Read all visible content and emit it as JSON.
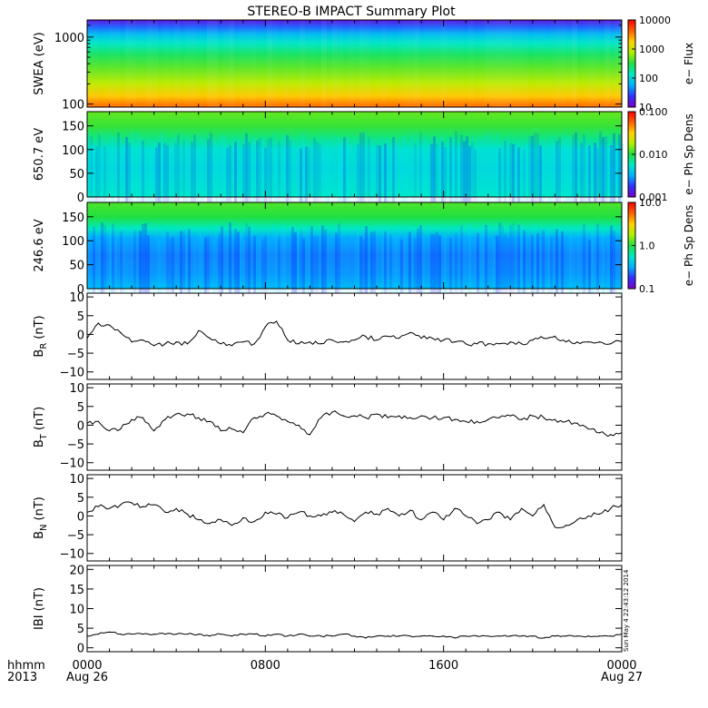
{
  "title": "STEREO-B IMPACT Summary Plot",
  "timestamp_note": "Sun May  4 22:43:12 2014",
  "colors": {
    "frame": "#000000",
    "line": "#000000",
    "background": "#ffffff"
  },
  "spectral_colormap": [
    "#7a00c8",
    "#3030ff",
    "#00b0ff",
    "#00e8c8",
    "#20e040",
    "#b0f000",
    "#ffd000",
    "#ff6000",
    "#ff0000"
  ],
  "chart_data": [
    {
      "type": "heatmap",
      "panel": "swea",
      "ylabel": "SWEA (eV)",
      "yscale": "log",
      "ylim": [
        90,
        1800
      ],
      "yticks": [
        {
          "value": 100,
          "label": "100"
        },
        {
          "value": 1000,
          "label": "1000"
        }
      ],
      "colorbar": {
        "label": "e− Flux",
        "scale": "log",
        "range": [
          10,
          10000
        ],
        "ticks": [
          "10",
          "100",
          "1000",
          "10000"
        ]
      },
      "energy_profile": [
        {
          "energy": 1800,
          "level": 0.05
        },
        {
          "energy": 1400,
          "level": 0.18
        },
        {
          "energy": 1100,
          "level": 0.28
        },
        {
          "energy": 800,
          "level": 0.38
        },
        {
          "energy": 550,
          "level": 0.47
        },
        {
          "energy": 350,
          "level": 0.55
        },
        {
          "energy": 200,
          "level": 0.65
        },
        {
          "energy": 130,
          "level": 0.76
        },
        {
          "energy": 100,
          "level": 0.84
        },
        {
          "energy": 90,
          "level": 0.86
        }
      ]
    },
    {
      "type": "heatmap",
      "panel": "pad650",
      "ylabel": "650.7 eV",
      "ylim": [
        0,
        180
      ],
      "yticks": [
        {
          "value": 0,
          "label": "0"
        },
        {
          "value": 50,
          "label": "50"
        },
        {
          "value": 100,
          "label": "100"
        },
        {
          "value": 150,
          "label": "150"
        }
      ],
      "colorbar": {
        "label": "e− Ph Sp Dens",
        "scale": "log",
        "range": [
          0.001,
          0.1
        ],
        "ticks": [
          "0.001",
          "0.010",
          "0.100"
        ]
      },
      "pitch_profile": [
        {
          "angle": 0,
          "level": 0.38
        },
        {
          "angle": 20,
          "level": 0.36
        },
        {
          "angle": 60,
          "level": 0.34
        },
        {
          "angle": 100,
          "level": 0.36
        },
        {
          "angle": 125,
          "level": 0.44
        },
        {
          "angle": 150,
          "level": 0.52
        },
        {
          "angle": 180,
          "level": 0.56
        }
      ]
    },
    {
      "type": "heatmap",
      "panel": "pad246",
      "ylabel": "246.6 eV",
      "ylim": [
        0,
        180
      ],
      "yticks": [
        {
          "value": 0,
          "label": "0"
        },
        {
          "value": 50,
          "label": "50"
        },
        {
          "value": 100,
          "label": "100"
        },
        {
          "value": 150,
          "label": "150"
        }
      ],
      "colorbar": {
        "label": "e− Ph Sp Dens",
        "scale": "log",
        "range": [
          0.1,
          10
        ],
        "ticks": [
          "0.1",
          "1.0",
          "10.0"
        ]
      },
      "pitch_profile": [
        {
          "angle": 0,
          "level": 0.27
        },
        {
          "angle": 30,
          "level": 0.22
        },
        {
          "angle": 70,
          "level": 0.2
        },
        {
          "angle": 105,
          "level": 0.24
        },
        {
          "angle": 125,
          "level": 0.38
        },
        {
          "angle": 150,
          "level": 0.5
        },
        {
          "angle": 180,
          "level": 0.54
        }
      ]
    },
    {
      "type": "line",
      "panel": "br",
      "ylabel": "B",
      "ylabel_sub": "R",
      "ylabel_unit": "(nT)",
      "ylim": [
        -12,
        11
      ],
      "yticks": [
        {
          "value": -10,
          "label": "−10"
        },
        {
          "value": -5,
          "label": "−5"
        },
        {
          "value": 0,
          "label": "0"
        },
        {
          "value": 5,
          "label": "5"
        },
        {
          "value": 10,
          "label": "10"
        }
      ],
      "x": [
        0,
        0.5,
        1,
        1.5,
        2,
        2.5,
        3,
        3.5,
        4,
        4.5,
        5,
        5.5,
        6,
        6.5,
        7,
        7.5,
        8,
        8.5,
        9,
        9.5,
        10,
        10.5,
        11,
        11.5,
        12,
        12.5,
        13,
        13.5,
        14,
        14.5,
        15,
        15.5,
        16,
        16.5,
        17,
        17.5,
        18,
        18.5,
        19,
        19.5,
        20,
        20.5,
        21,
        21.5,
        22,
        22.5,
        23,
        23.5,
        24
      ],
      "y": [
        -1,
        3,
        2.5,
        0.5,
        -2,
        -1.5,
        -3,
        -2.5,
        -2,
        -2.5,
        1,
        -1,
        -2.5,
        -3,
        -2,
        -2.5,
        2,
        3.5,
        -1.5,
        -2.5,
        -2,
        -2.5,
        -1.5,
        -2,
        -1.5,
        -0.5,
        -1.5,
        -0.5,
        -1,
        0.5,
        -1,
        -1,
        -1.5,
        -2,
        -2.5,
        -2.5,
        -2.5,
        -2.5,
        -2,
        -2.5,
        -1.5,
        -1,
        -0.5,
        -2,
        -2,
        -2,
        -2,
        -2.5,
        -2
      ]
    },
    {
      "type": "line",
      "panel": "bt",
      "ylabel": "B",
      "ylabel_sub": "T",
      "ylabel_unit": "(nT)",
      "ylim": [
        -12,
        11
      ],
      "yticks": [
        {
          "value": -10,
          "label": "−10"
        },
        {
          "value": -5,
          "label": "−5"
        },
        {
          "value": 0,
          "label": "0"
        },
        {
          "value": 5,
          "label": "5"
        },
        {
          "value": 10,
          "label": "10"
        }
      ],
      "x": [
        0,
        0.5,
        1,
        1.5,
        2,
        2.5,
        3,
        3.5,
        4,
        4.5,
        5,
        5.5,
        6,
        6.5,
        7,
        7.5,
        8,
        8.5,
        9,
        9.5,
        10,
        10.5,
        11,
        11.5,
        12,
        12.5,
        13,
        13.5,
        14,
        14.5,
        15,
        15.5,
        16,
        16.5,
        17,
        17.5,
        18,
        18.5,
        19,
        19.5,
        20,
        20.5,
        21,
        21.5,
        22,
        22.5,
        23,
        23.5,
        24
      ],
      "y": [
        0.5,
        1,
        -1.5,
        -1,
        1.5,
        2,
        -1.5,
        1.5,
        3,
        3,
        2,
        1,
        -1.5,
        -1,
        -2,
        2,
        3,
        2.5,
        1,
        0,
        -2.5,
        2,
        3.5,
        2.5,
        2.5,
        2,
        3,
        2,
        2.5,
        2,
        2.5,
        2,
        2,
        1.5,
        1,
        1,
        1.5,
        2,
        2.5,
        1.5,
        2.5,
        2,
        1.5,
        1,
        0.5,
        -1,
        -2,
        -2.5,
        -2
      ]
    },
    {
      "type": "line",
      "panel": "bn",
      "ylabel": "B",
      "ylabel_sub": "N",
      "ylabel_unit": "(nT)",
      "ylim": [
        -12,
        11
      ],
      "yticks": [
        {
          "value": -10,
          "label": "−10"
        },
        {
          "value": -5,
          "label": "−5"
        },
        {
          "value": 0,
          "label": "0"
        },
        {
          "value": 5,
          "label": "5"
        },
        {
          "value": 10,
          "label": "10"
        }
      ],
      "x": [
        0,
        0.5,
        1,
        1.5,
        2,
        2.5,
        3,
        3.5,
        4,
        4.5,
        5,
        5.5,
        6,
        6.5,
        7,
        7.5,
        8,
        8.5,
        9,
        9.5,
        10,
        10.5,
        11,
        11.5,
        12,
        12.5,
        13,
        13.5,
        14,
        14.5,
        15,
        15.5,
        16,
        16.5,
        17,
        17.5,
        18,
        18.5,
        19,
        19.5,
        20,
        20.5,
        21,
        21.5,
        22,
        22.5,
        23,
        23.5,
        24
      ],
      "y": [
        1,
        2.5,
        2,
        3,
        3.5,
        2.5,
        3,
        1,
        2,
        0.5,
        -1,
        -2,
        -1,
        -2.5,
        -0.5,
        -1.5,
        1,
        0.5,
        -0.5,
        1,
        0,
        0,
        1,
        0.5,
        -1.5,
        1,
        0.5,
        2,
        0,
        1.5,
        -1,
        1,
        -1,
        2,
        0,
        -2,
        -1,
        1,
        -1,
        2,
        0,
        3,
        -3,
        -2.5,
        -1,
        0,
        0.5,
        2,
        3
      ]
    },
    {
      "type": "line",
      "panel": "bmag",
      "ylabel": "IBI",
      "ylabel_unit": "(nT)",
      "ylim": [
        -1,
        21
      ],
      "yticks": [
        {
          "value": 0,
          "label": "0"
        },
        {
          "value": 5,
          "label": "5"
        },
        {
          "value": 10,
          "label": "10"
        },
        {
          "value": 15,
          "label": "15"
        },
        {
          "value": 20,
          "label": "20"
        }
      ],
      "x": [
        0,
        0.5,
        1,
        1.5,
        2,
        2.5,
        3,
        3.5,
        4,
        4.5,
        5,
        5.5,
        6,
        6.5,
        7,
        7.5,
        8,
        8.5,
        9,
        9.5,
        10,
        10.5,
        11,
        11.5,
        12,
        12.5,
        13,
        13.5,
        14,
        14.5,
        15,
        15.5,
        16,
        16.5,
        17,
        17.5,
        18,
        18.5,
        19,
        19.5,
        20,
        20.5,
        21,
        21.5,
        22,
        22.5,
        23,
        23.5,
        24
      ],
      "y": [
        3,
        3.5,
        4,
        3.5,
        3.5,
        3.5,
        3.5,
        3.5,
        3.5,
        3.5,
        3.5,
        3,
        3.5,
        3,
        3.5,
        3.5,
        3,
        3.5,
        3,
        3.5,
        3,
        3,
        3,
        3.5,
        3,
        2.5,
        3,
        3,
        3,
        3,
        3,
        3,
        3,
        2.5,
        3,
        3,
        3,
        3,
        3,
        3,
        3,
        2.5,
        3,
        3,
        3,
        3,
        3,
        3,
        3.5
      ]
    }
  ],
  "xaxis": {
    "range": [
      0,
      24
    ],
    "row_labels": [
      "hhmm",
      "2013"
    ],
    "ticks": [
      {
        "value": 0,
        "label": "0000",
        "date": "Aug 26"
      },
      {
        "value": 8,
        "label": "0800",
        "date": ""
      },
      {
        "value": 16,
        "label": "1600",
        "date": ""
      },
      {
        "value": 24,
        "label": "0000",
        "date": "Aug 27"
      }
    ]
  }
}
